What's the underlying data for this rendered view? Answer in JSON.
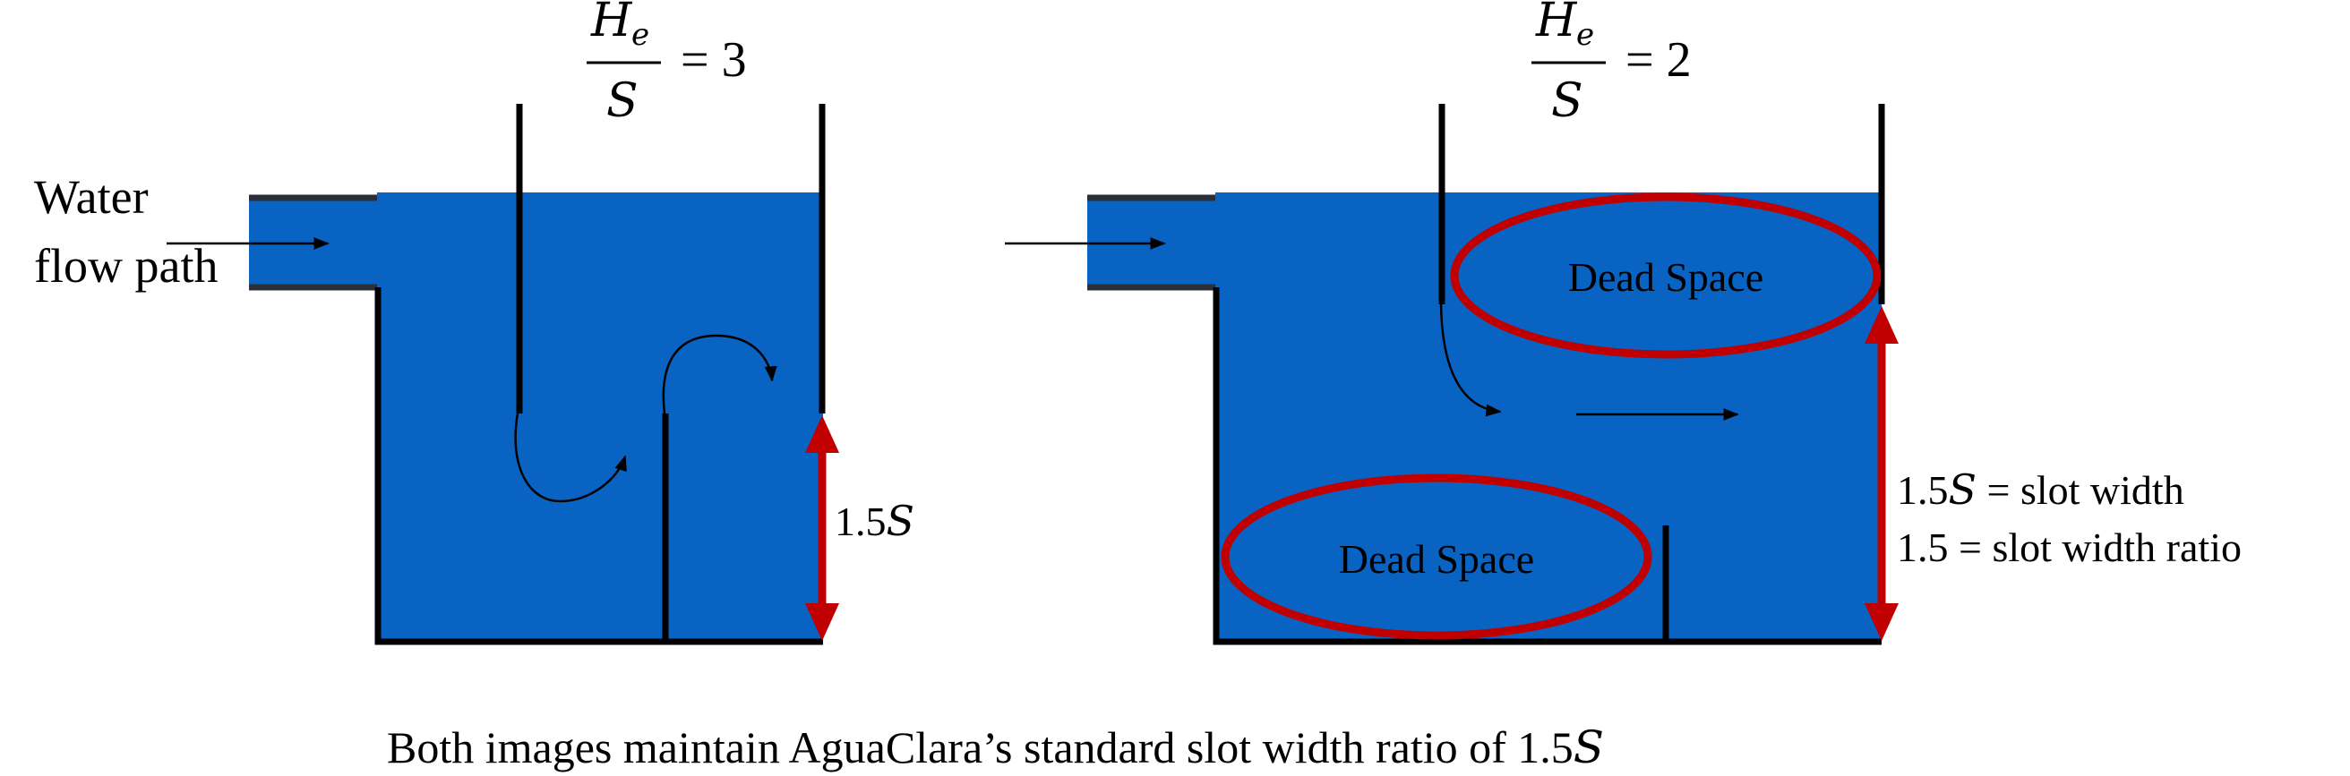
{
  "left_diagram": {
    "ratio_numerator": "H",
    "ratio_numerator_sub": "e",
    "ratio_denominator": "S",
    "ratio_value": "= 3",
    "slot_label": "1.5",
    "slot_label_var": "S"
  },
  "right_diagram": {
    "ratio_numerator": "H",
    "ratio_numerator_sub": "e",
    "ratio_denominator": "S",
    "ratio_value": "= 2",
    "dead_space_top": "Dead Space",
    "dead_space_bottom": "Dead Space",
    "slot_line1_num": "1.5",
    "slot_line1_var": "S",
    "slot_line1_rest": " = slot width",
    "slot_line2": "1.5 = slot width ratio"
  },
  "flow_label_line1": "Water",
  "flow_label_line2": "flow path",
  "caption_text": "Both images maintain AguaClara’s standard slot width ratio of 1.5",
  "caption_var": "S",
  "colors": {
    "water": "#0863c2",
    "wall": "#000000",
    "highlight": "#c00000",
    "pipe_edge": "#2b2f3a"
  }
}
